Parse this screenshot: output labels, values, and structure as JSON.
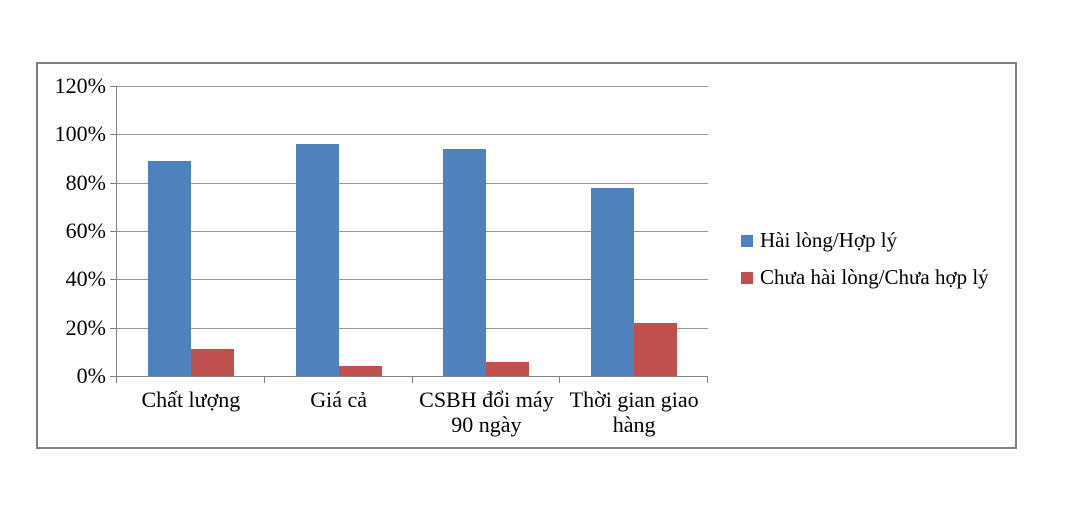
{
  "chart_data": {
    "type": "bar",
    "title": "",
    "xlabel": "",
    "ylabel": "",
    "categories": [
      "Chất lượng",
      "Giá cả",
      "CSBH đổi máy 90 ngày",
      "Thời gian giao hàng"
    ],
    "series": [
      {
        "name": "Hài lòng/Hợp lý",
        "color": "#4F81BD",
        "values": [
          89,
          96,
          94,
          78
        ]
      },
      {
        "name": "Chưa hài lòng/Chưa hợp lý",
        "color": "#C0504D",
        "values": [
          11,
          4,
          6,
          22
        ]
      }
    ],
    "ylim": [
      0,
      120
    ],
    "ytick_step": 20,
    "ytick_labels": [
      "0%",
      "20%",
      "40%",
      "60%",
      "80%",
      "100%",
      "120%"
    ],
    "grid": true,
    "legend_position": "right"
  },
  "colors": {
    "frame_border": "#808080",
    "gridline": "#989898",
    "axis": "#808080",
    "background": "#ffffff",
    "text": "#000000",
    "series_blue": "#4F81BD",
    "series_red": "#C0504D"
  }
}
